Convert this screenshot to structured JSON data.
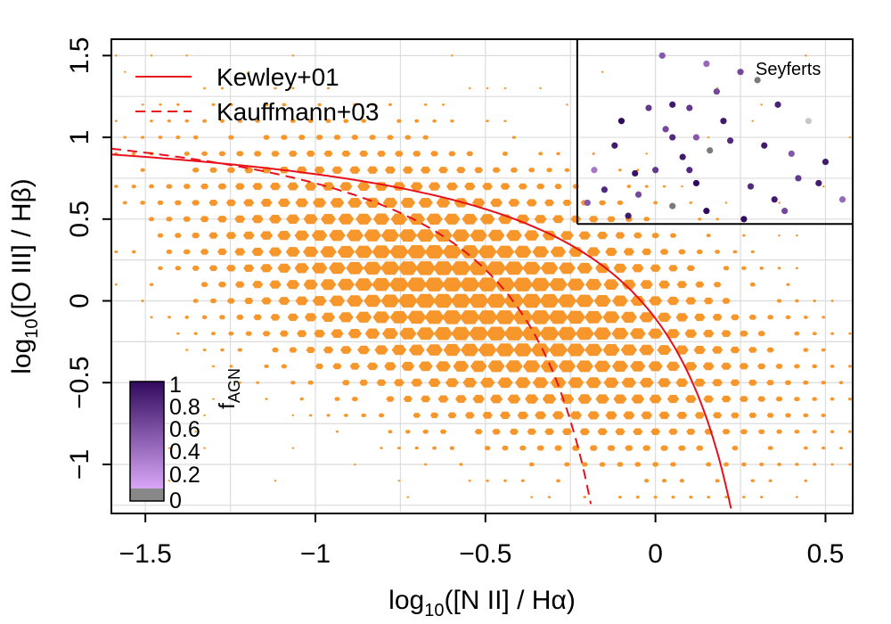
{
  "chart_data": {
    "type": "scatter",
    "title": "",
    "xlabel": {
      "prefix": "log",
      "sub": "10",
      "suffix": "([N II] / Hα)"
    },
    "ylabel": {
      "prefix": "log",
      "sub": "10",
      "suffix": "([O III] / Hβ)"
    },
    "xlim": [
      -1.6,
      0.58
    ],
    "ylim": [
      -1.3,
      1.6
    ],
    "xticks": [
      -1.5,
      -1,
      -0.5,
      0,
      0.5
    ],
    "xtick_labels": [
      "−1.5",
      "−1",
      "−0.5",
      "0",
      "0.5"
    ],
    "yticks": [
      -1,
      -0.5,
      0,
      0.5,
      1,
      1.5
    ],
    "ytick_labels": [
      "−1",
      "−0.5",
      "0",
      "0.5",
      "1",
      "1.5"
    ],
    "grid": true,
    "legend": {
      "position": "top-left",
      "entries": [
        {
          "label": "Kewley+01",
          "style": "solid",
          "color": "#e8101a"
        },
        {
          "label": "Kauffmann+03",
          "style": "dashed",
          "color": "#e8101a"
        }
      ]
    },
    "curves": [
      {
        "name": "Kewley+01",
        "formula": "0.61/(x-0.47)+1.19",
        "x_max": 0.222
      },
      {
        "name": "Kauffmann+03",
        "formula": "0.61/(x-0.05)+1.3",
        "x_max": -0.19
      }
    ],
    "seyfert_box": {
      "label": "Seyferts",
      "x_min": -0.23,
      "y_min": 0.47
    },
    "hexbin": {
      "name": "galaxy density",
      "color": "#f7962b",
      "center_x": -0.52,
      "center_y": 0.02,
      "counts_scale": "relative",
      "x_step": 0.052,
      "y_step": 0.1
    },
    "agn_points": {
      "color_variable": "f_AGN",
      "points": [
        [
          0.05,
          1.2,
          0.9
        ],
        [
          0.1,
          1.18,
          0.7
        ],
        [
          0.15,
          1.45,
          0.4
        ],
        [
          0.25,
          1.4,
          0.6
        ],
        [
          0.02,
          1.5,
          0.5
        ],
        [
          0.05,
          1.0,
          0.8
        ],
        [
          0.2,
          1.1,
          0.9
        ],
        [
          -0.1,
          1.1,
          1.0
        ],
        [
          0.3,
          1.35,
          0.0
        ],
        [
          0.4,
          0.9,
          0.5
        ],
        [
          0.45,
          1.1,
          0.05
        ],
        [
          0.5,
          0.85,
          0.9
        ],
        [
          0.0,
          0.8,
          0.7
        ],
        [
          0.12,
          0.72,
          1.0
        ],
        [
          -0.05,
          0.65,
          0.6
        ],
        [
          0.28,
          0.7,
          0.8
        ],
        [
          0.35,
          0.62,
          0.9
        ],
        [
          0.55,
          0.62,
          0.4
        ],
        [
          -0.18,
          0.8,
          0.3
        ],
        [
          -0.12,
          0.95,
          0.9
        ],
        [
          0.15,
          0.55,
          1.0
        ],
        [
          0.05,
          0.58,
          0.0
        ],
        [
          0.22,
          0.98,
          0.8
        ],
        [
          0.08,
          0.88,
          0.9
        ],
        [
          -0.02,
          1.18,
          0.7
        ],
        [
          0.18,
          1.28,
          0.6
        ],
        [
          0.12,
          1.0,
          0.5
        ],
        [
          0.32,
          0.95,
          0.9
        ],
        [
          0.42,
          0.75,
          0.7
        ],
        [
          -0.15,
          0.68,
          0.8
        ],
        [
          -0.08,
          0.52,
          0.9
        ],
        [
          0.38,
          0.55,
          0.6
        ],
        [
          0.48,
          0.72,
          0.9
        ],
        [
          -0.2,
          0.6,
          0.5
        ],
        [
          0.26,
          0.5,
          1.0
        ],
        [
          0.1,
          0.8,
          0.8
        ],
        [
          0.03,
          1.05,
          0.6
        ],
        [
          -0.06,
          0.78,
          0.95
        ],
        [
          0.16,
          0.92,
          0.0
        ],
        [
          0.36,
          1.2,
          0.85
        ]
      ]
    },
    "colorbar": {
      "title": "f",
      "title_sub": "AGN",
      "ticks": [
        "1",
        "0.8",
        "0.6",
        "0.4",
        "0.2",
        "0"
      ],
      "range": [
        0,
        1
      ],
      "color_low": "#d9a6f7",
      "color_high": "#300a5e",
      "null_color": "#888888"
    },
    "annotations": [
      "Seyferts"
    ]
  }
}
